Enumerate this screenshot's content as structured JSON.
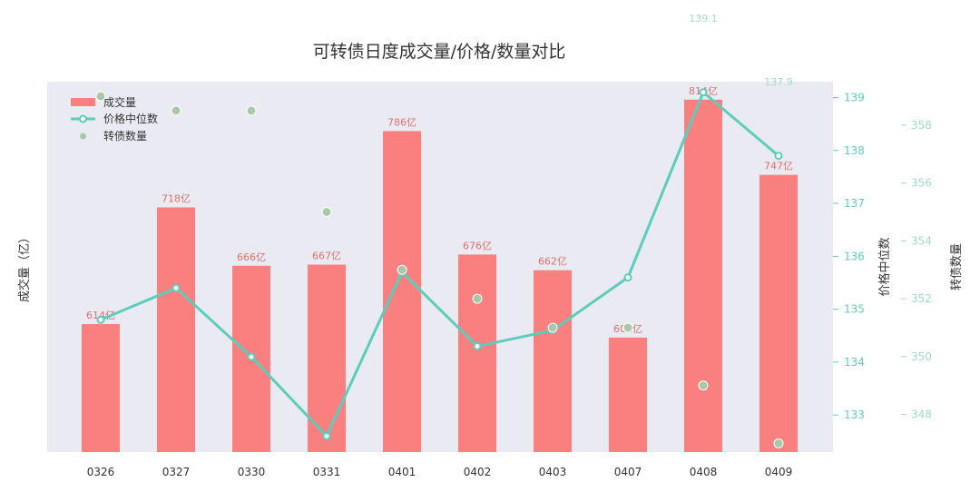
{
  "colors": {
    "plot_bg": "#eaeaf2",
    "bar": "#fa7f7f",
    "bar_label": "#e0706e",
    "line": "#5dcdbb",
    "scatter_fill": "#a9c8a9",
    "scatter_edge": "#ffffff",
    "right_tick": "#5dcdbb",
    "far_tick": "#9fdcc8"
  },
  "chart_data": {
    "type": "bar",
    "title": "可转债日度成交量/价格/数量对比",
    "categories": [
      "0326",
      "0327",
      "0330",
      "0331",
      "0401",
      "0402",
      "0403",
      "0407",
      "0408",
      "0409"
    ],
    "series": [
      {
        "name": "成交量",
        "type": "bar",
        "axis": "left",
        "values": [
          614,
          718,
          666,
          667,
          786,
          676,
          662,
          602,
          814,
          747
        ],
        "labels": [
          "614亿",
          "718亿",
          "666亿",
          "667亿",
          "786亿",
          "676亿",
          "662亿",
          "602亿",
          "814亿",
          "747亿"
        ]
      },
      {
        "name": "价格中位数",
        "type": "line",
        "axis": "right",
        "values": [
          134.8,
          135.4,
          134.1,
          132.6,
          135.7,
          134.3,
          134.6,
          135.6,
          139.1,
          137.9
        ]
      },
      {
        "name": "转债数量",
        "type": "scatter",
        "axis": "far_right",
        "values": [
          359,
          358.5,
          358.5,
          355,
          353,
          352,
          351,
          351,
          349,
          347
        ]
      }
    ],
    "faint_labels": [
      {
        "category": "0408",
        "text": "139.1"
      },
      {
        "category": "0409",
        "text": "137.9"
      }
    ],
    "ylabel_left": "成交量（亿）",
    "ylabel_right": "价格中位数",
    "ylabel_far_right": "转债数量",
    "ylim_left": [
      500,
      830
    ],
    "ylim_right": [
      132.3,
      139.3
    ],
    "ylim_far_right": [
      346.7,
      359.5
    ],
    "yticks_right": [
      133,
      134,
      135,
      136,
      137,
      138,
      139
    ],
    "yticks_far_right": [
      348,
      350,
      352,
      354,
      356,
      358
    ],
    "grid": false,
    "legend": "top-left"
  }
}
